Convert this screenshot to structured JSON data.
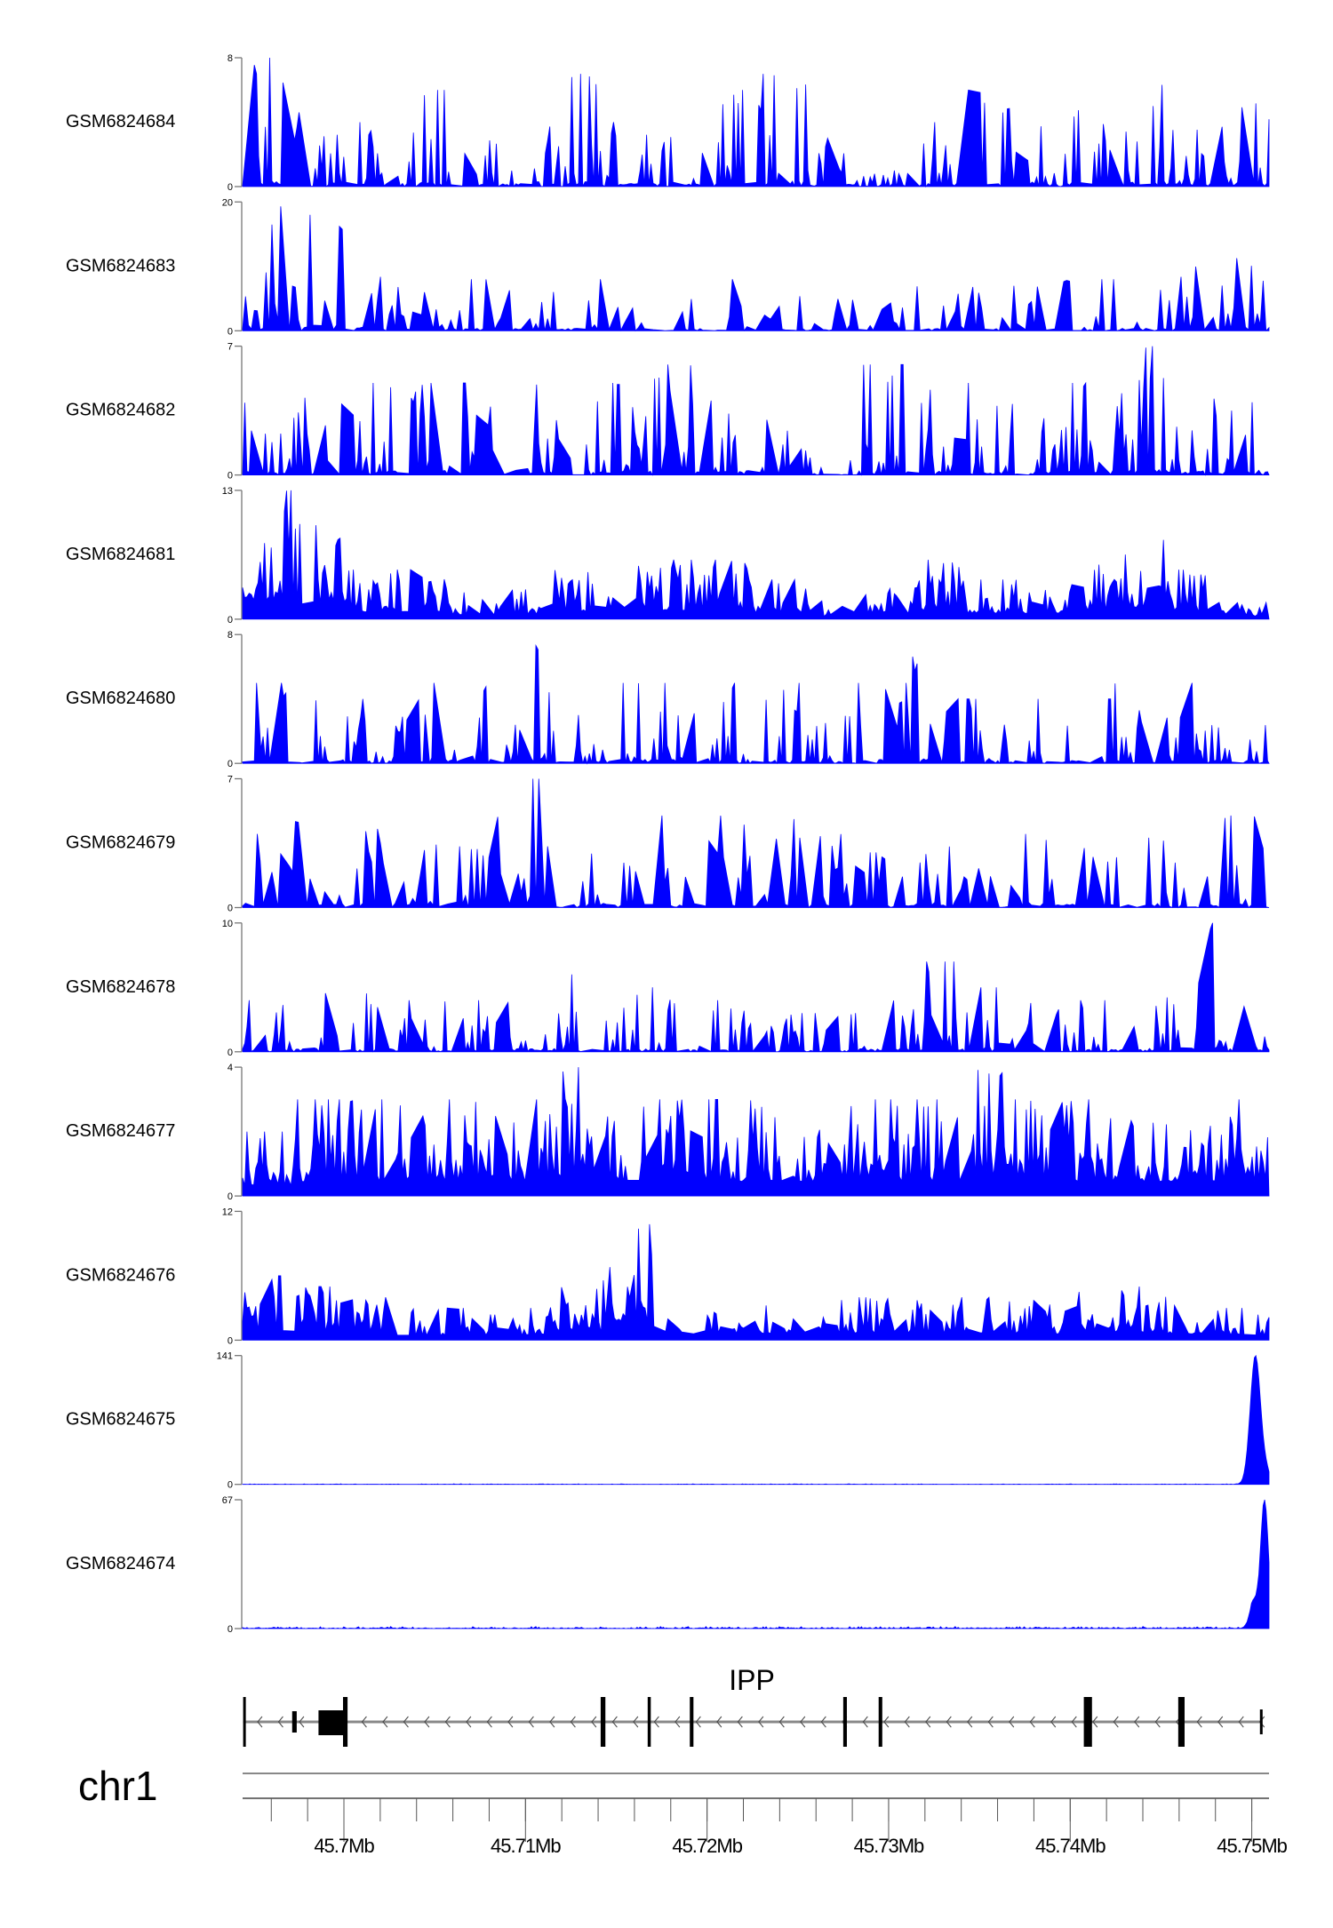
{
  "chart_data": {
    "type": "area",
    "title": "",
    "chromosome": "chr1",
    "xlim_mb": [
      45.69442,
      45.75095
    ],
    "x_ticks": [
      {
        "value": 45.7,
        "label": "45.7Mb"
      },
      {
        "value": 45.71,
        "label": "45.71Mb"
      },
      {
        "value": 45.72,
        "label": "45.72Mb"
      },
      {
        "value": 45.73,
        "label": "45.73Mb"
      },
      {
        "value": 45.74,
        "label": "45.74Mb"
      },
      {
        "value": 45.75,
        "label": "45.75Mb"
      }
    ],
    "minor_tick_step_mb": 0.002,
    "fill_color": "#0000ff",
    "tracks": [
      {
        "name": "GSM6824684",
        "ymin_label": "0",
        "ymax_label": "8",
        "ymax": 8,
        "envelope": [
          8,
          5,
          4,
          6,
          3,
          4,
          7,
          4,
          4,
          6,
          7,
          3,
          1,
          4,
          6,
          4,
          5,
          8,
          4,
          6
        ],
        "seed": 11
      },
      {
        "name": "GSM6824683",
        "ymin_label": "0",
        "ymax_label": "20",
        "ymax": 20,
        "envelope": [
          20,
          18,
          12,
          8,
          8,
          7,
          8,
          7,
          5,
          8,
          6,
          5,
          5,
          8,
          8,
          7,
          8,
          8,
          10,
          12
        ],
        "seed": 23,
        "sparse": true
      },
      {
        "name": "GSM6824682",
        "ymin_label": "0",
        "ymax_label": "7",
        "ymax": 7,
        "envelope": [
          4,
          5,
          5,
          5,
          5,
          6,
          4,
          5,
          6,
          5,
          3,
          1,
          6,
          5,
          5,
          4,
          5,
          7,
          5,
          4
        ],
        "seed": 37
      },
      {
        "name": "GSM6824681",
        "ymin_label": "0",
        "ymax_label": "13",
        "ymax": 13,
        "envelope": [
          13,
          10,
          5,
          5,
          3,
          3,
          5,
          8,
          6,
          6,
          4,
          2,
          4,
          6,
          4,
          4,
          6,
          8,
          5,
          2
        ],
        "seed": 41,
        "dense": true
      },
      {
        "name": "GSM6824680",
        "ymin_label": "0",
        "ymax_label": "8",
        "ymax": 8,
        "envelope": [
          5,
          5,
          4,
          5,
          5,
          8,
          3,
          5,
          5,
          5,
          5,
          3,
          5,
          7,
          4,
          4,
          4,
          5,
          5,
          4
        ],
        "seed": 53
      },
      {
        "name": "GSM6824679",
        "ymin_label": "0",
        "ymax_label": "7",
        "ymax": 7,
        "envelope": [
          4,
          5,
          5,
          5,
          6,
          7,
          3,
          5,
          5,
          5,
          5,
          4,
          3,
          4,
          4,
          4,
          5,
          5,
          4,
          5
        ],
        "seed": 67,
        "sparse": true
      },
      {
        "name": "GSM6824678",
        "ymin_label": "0",
        "ymax_label": "10",
        "ymax": 10,
        "envelope": [
          4,
          5,
          5,
          4,
          4,
          5,
          6,
          5,
          5,
          4,
          3,
          3,
          5,
          7,
          5,
          5,
          4,
          6,
          10,
          5
        ],
        "seed": 71
      },
      {
        "name": "GSM6824677",
        "ymin_label": "0",
        "ymax_label": "4",
        "ymax": 4,
        "envelope": [
          2,
          3,
          3,
          3,
          3,
          3,
          4,
          3,
          3,
          3,
          3,
          3,
          3,
          3,
          4,
          3,
          3,
          3,
          3,
          3
        ],
        "seed": 83,
        "dense": true
      },
      {
        "name": "GSM6824676",
        "ymin_label": "0",
        "ymax_label": "12",
        "ymax": 12,
        "envelope": [
          6,
          5,
          4,
          3,
          3,
          3,
          5,
          12,
          4,
          4,
          4,
          4,
          4,
          4,
          4,
          4,
          5,
          5,
          4,
          3
        ],
        "seed": 97,
        "dense": true
      },
      {
        "name": "GSM6824675",
        "ymin_label": "0",
        "ymax_label": "141",
        "ymax": 141,
        "background": 0.6,
        "peaks": [
          {
            "mb": 45.7502,
            "value": 141,
            "width_mb": 0.0004
          },
          {
            "mb": 45.7508,
            "value": 12,
            "width_mb": 0.0003
          }
        ]
      },
      {
        "name": "GSM6824674",
        "ymin_label": "0",
        "ymax_label": "67",
        "ymax": 67,
        "background": 1.2,
        "peaks": [
          {
            "mb": 45.7507,
            "value": 67,
            "width_mb": 0.0003
          },
          {
            "mb": 45.7501,
            "value": 14,
            "width_mb": 0.0003
          }
        ]
      }
    ],
    "gene": {
      "name": "IPP",
      "strand": "-",
      "start_mb": 45.69445,
      "end_mb": 45.75048,
      "exons_mb": [
        [
          45.69445,
          45.6945,
          "thin"
        ],
        [
          45.69715,
          45.6974,
          "small"
        ],
        [
          45.6986,
          45.7,
          "utr"
        ],
        [
          45.69995,
          45.7002,
          "tall"
        ],
        [
          45.71414,
          45.7144,
          "tall"
        ],
        [
          45.71673,
          45.7169,
          "tall"
        ],
        [
          45.71905,
          45.71925,
          "tall"
        ],
        [
          45.7275,
          45.7277,
          "tall"
        ],
        [
          45.72945,
          45.72965,
          "tall"
        ],
        [
          45.74075,
          45.7412,
          "tall"
        ],
        [
          45.74595,
          45.7463,
          "tall"
        ],
        [
          45.75045,
          45.7505,
          "thin"
        ]
      ]
    }
  }
}
